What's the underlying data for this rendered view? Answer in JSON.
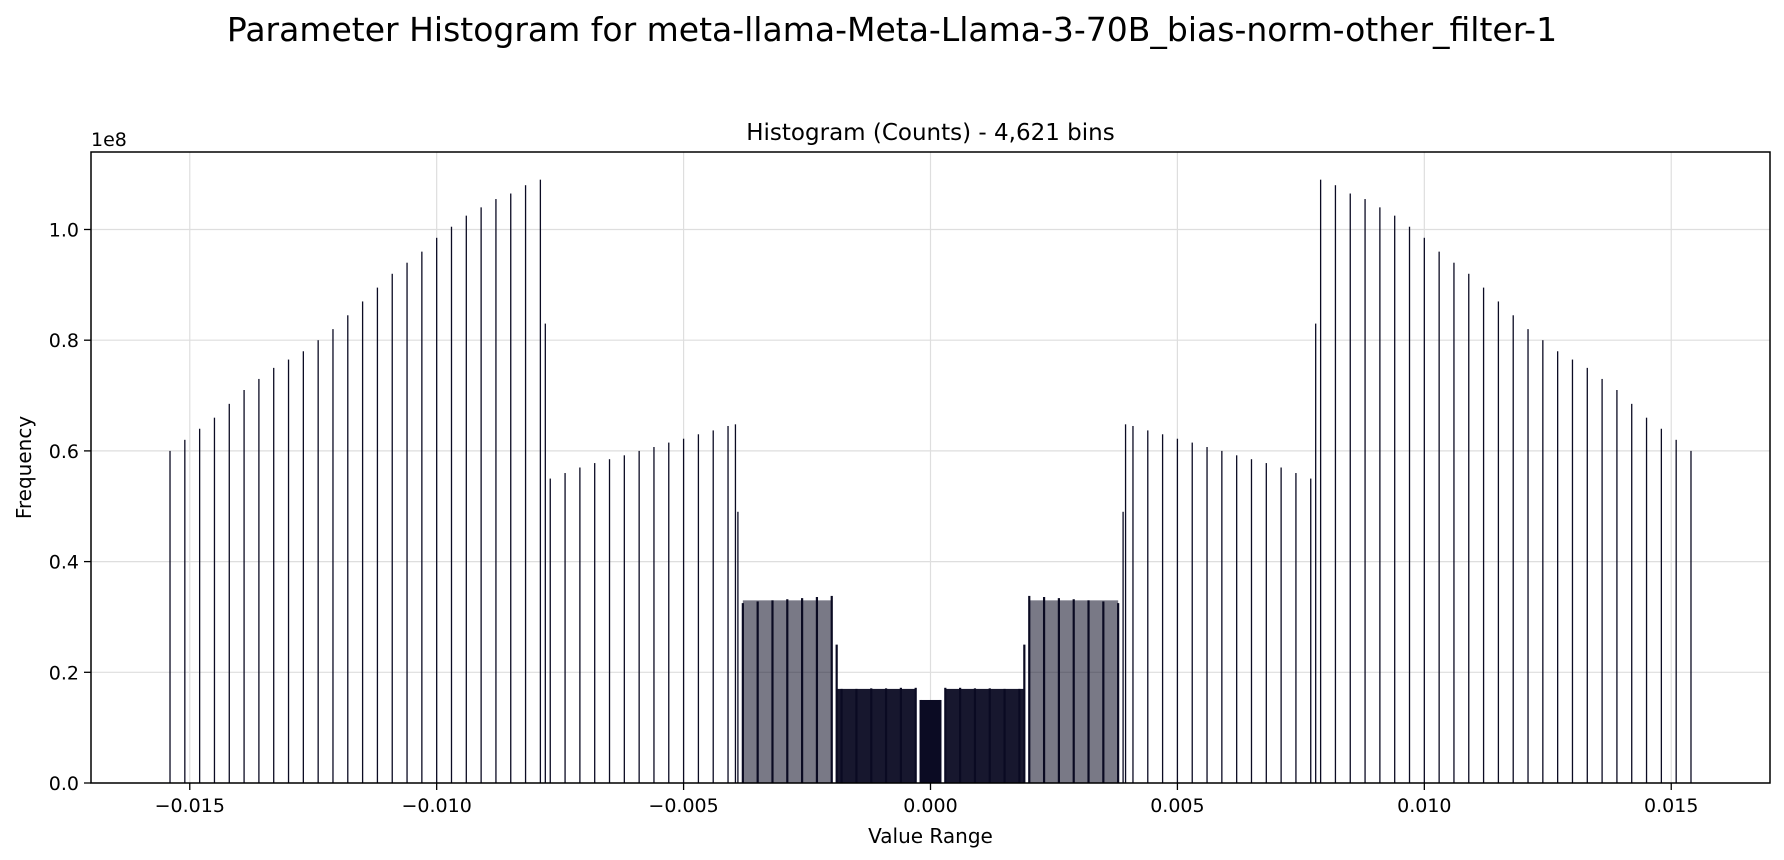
{
  "figure": {
    "suptitle": "Parameter Histogram for meta-llama-Meta-Llama-3-70B_bias-norm-other_filter-1"
  },
  "chart_data": {
    "type": "bar",
    "title": "Histogram (Counts) - 4,621 bins",
    "xlabel": "Value Range",
    "ylabel": "Frequency",
    "y_offset_label": "1e8",
    "xlim": [
      -0.017,
      0.017
    ],
    "ylim": [
      0,
      1.14
    ],
    "y_unit_multiplier": 100000000,
    "grid": true,
    "bar_color": "#0b0b23",
    "x_ticks": [
      -0.015,
      -0.01,
      -0.005,
      0.0,
      0.005,
      0.01,
      0.015
    ],
    "x_tick_labels": [
      "−0.015",
      "−0.010",
      "−0.005",
      "0.000",
      "0.005",
      "0.010",
      "0.015"
    ],
    "y_ticks": [
      0.0,
      0.2,
      0.4,
      0.6,
      0.8,
      1.0
    ],
    "y_tick_labels": [
      "0.0",
      "0.2",
      "0.4",
      "0.6",
      "0.8",
      "1.0"
    ],
    "bins_negative_side": [
      {
        "x": -0.0154,
        "y": 0.6
      },
      {
        "x": -0.0151,
        "y": 0.62
      },
      {
        "x": -0.0148,
        "y": 0.64
      },
      {
        "x": -0.0145,
        "y": 0.66
      },
      {
        "x": -0.0142,
        "y": 0.685
      },
      {
        "x": -0.0139,
        "y": 0.71
      },
      {
        "x": -0.0136,
        "y": 0.73
      },
      {
        "x": -0.0133,
        "y": 0.75
      },
      {
        "x": -0.013,
        "y": 0.765
      },
      {
        "x": -0.0127,
        "y": 0.78
      },
      {
        "x": -0.0124,
        "y": 0.8
      },
      {
        "x": -0.0121,
        "y": 0.82
      },
      {
        "x": -0.0118,
        "y": 0.845
      },
      {
        "x": -0.0115,
        "y": 0.87
      },
      {
        "x": -0.0112,
        "y": 0.895
      },
      {
        "x": -0.0109,
        "y": 0.92
      },
      {
        "x": -0.0106,
        "y": 0.94
      },
      {
        "x": -0.0103,
        "y": 0.96
      },
      {
        "x": -0.01,
        "y": 0.985
      },
      {
        "x": -0.0097,
        "y": 1.005
      },
      {
        "x": -0.0094,
        "y": 1.025
      },
      {
        "x": -0.0091,
        "y": 1.04
      },
      {
        "x": -0.0088,
        "y": 1.055
      },
      {
        "x": -0.0085,
        "y": 1.065
      },
      {
        "x": -0.0082,
        "y": 1.08
      },
      {
        "x": -0.0079,
        "y": 1.09
      },
      {
        "x": -0.0078,
        "y": 0.83
      },
      {
        "x": -0.0077,
        "y": 0.55
      },
      {
        "x": -0.0074,
        "y": 0.56
      },
      {
        "x": -0.0071,
        "y": 0.57
      },
      {
        "x": -0.0068,
        "y": 0.578
      },
      {
        "x": -0.0065,
        "y": 0.585
      },
      {
        "x": -0.0062,
        "y": 0.592
      },
      {
        "x": -0.0059,
        "y": 0.6
      },
      {
        "x": -0.0056,
        "y": 0.607
      },
      {
        "x": -0.0053,
        "y": 0.615
      },
      {
        "x": -0.005,
        "y": 0.622
      },
      {
        "x": -0.0047,
        "y": 0.63
      },
      {
        "x": -0.0044,
        "y": 0.637
      },
      {
        "x": -0.0041,
        "y": 0.645
      },
      {
        "x": -0.00395,
        "y": 0.648
      },
      {
        "x": -0.0039,
        "y": 0.49
      },
      {
        "x": -0.0038,
        "y": 0.325
      },
      {
        "x": -0.0035,
        "y": 0.328
      },
      {
        "x": -0.0032,
        "y": 0.33
      },
      {
        "x": -0.0029,
        "y": 0.332
      },
      {
        "x": -0.0026,
        "y": 0.334
      },
      {
        "x": -0.0023,
        "y": 0.336
      },
      {
        "x": -0.002,
        "y": 0.338
      },
      {
        "x": -0.0019,
        "y": 0.25
      },
      {
        "x": -0.0018,
        "y": 0.17
      },
      {
        "x": -0.0015,
        "y": 0.17
      },
      {
        "x": -0.0012,
        "y": 0.171
      },
      {
        "x": -0.0009,
        "y": 0.171
      },
      {
        "x": -0.0006,
        "y": 0.172
      },
      {
        "x": -0.0003,
        "y": 0.172
      },
      {
        "x": -0.0002,
        "y": 0.15
      }
    ],
    "bins_center": {
      "x_start": -0.0002,
      "x_end": 0.0002,
      "y": 0.15
    },
    "bins_symmetric_about_zero": true
  }
}
